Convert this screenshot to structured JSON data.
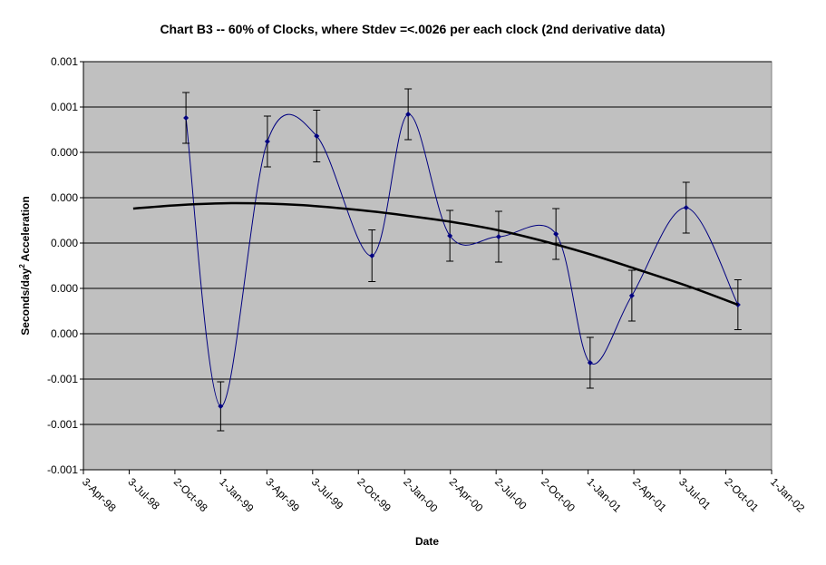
{
  "chart_data": {
    "type": "line",
    "title": "Chart B3 -- 60% of Clocks, where Stdev =<.0026 per each clock (2nd derivative data)",
    "xlabel": "Date",
    "ylabel": {
      "text": "Seconds/day",
      "superscript": "2",
      "rest": " Acceleration"
    },
    "xlim": [
      "1998-04-03",
      "2002-01-01"
    ],
    "xticks": [
      {
        "value": "1998-04-03",
        "label": "3-Apr-98"
      },
      {
        "value": "1998-07-03",
        "label": "3-Jul-98"
      },
      {
        "value": "1998-10-02",
        "label": "2-Oct-98"
      },
      {
        "value": "1999-01-01",
        "label": "1-Jan-99"
      },
      {
        "value": "1999-04-03",
        "label": "3-Apr-99"
      },
      {
        "value": "1999-07-03",
        "label": "3-Jul-99"
      },
      {
        "value": "1999-10-02",
        "label": "2-Oct-99"
      },
      {
        "value": "2000-01-02",
        "label": "2-Jan-00"
      },
      {
        "value": "2000-04-02",
        "label": "2-Apr-00"
      },
      {
        "value": "2000-07-02",
        "label": "2-Jul-00"
      },
      {
        "value": "2000-10-02",
        "label": "2-Oct-00"
      },
      {
        "value": "2001-01-01",
        "label": "1-Jan-01"
      },
      {
        "value": "2001-04-02",
        "label": "2-Apr-01"
      },
      {
        "value": "2001-07-03",
        "label": "3-Jul-01"
      },
      {
        "value": "2001-10-02",
        "label": "2-Oct-01"
      },
      {
        "value": "2002-01-01",
        "label": "1-Jan-02"
      }
    ],
    "ylim": [
      -0.001,
      0.0008
    ],
    "yticks": [
      {
        "value": -0.001,
        "label": "-0.001"
      },
      {
        "value": -0.0008,
        "label": "-0.001"
      },
      {
        "value": -0.0006,
        "label": "-0.001"
      },
      {
        "value": -0.0004,
        "label": "0.000"
      },
      {
        "value": -0.0002,
        "label": "0.000"
      },
      {
        "value": 0,
        "label": "0.000"
      },
      {
        "value": 0.0002,
        "label": "0.000"
      },
      {
        "value": 0.0004,
        "label": "0.000"
      },
      {
        "value": 0.0006,
        "label": "0.001"
      },
      {
        "value": 0.0008,
        "label": "0.001"
      }
    ],
    "grid": true,
    "plot_background": "#c0c0c0",
    "series": [
      {
        "color": "#000080",
        "x": [
          "1998-10-24",
          "1999-01-01",
          "1999-04-04",
          "1999-07-11",
          "1999-10-29",
          "2000-01-09",
          "2000-04-01",
          "2000-07-07",
          "2000-10-29",
          "2001-01-05",
          "2001-03-29",
          "2001-07-15",
          "2001-10-26"
        ],
        "values": [
          0.000552,
          -0.00072,
          0.000448,
          0.000472,
          -5.6e-05,
          0.000568,
          3.2e-05,
          2.8e-05,
          4e-05,
          -0.000528,
          -0.000232,
          0.000156,
          -0.000272
        ],
        "errors": [
          0.000112,
          0.000108,
          0.000112,
          0.000114,
          0.000114,
          0.000112,
          0.000112,
          0.000112,
          0.000112,
          0.000112,
          0.000112,
          0.000112,
          0.00011
        ]
      }
    ],
    "trendline": {
      "color": "#000000",
      "x": [
        "1998-07-11",
        "1998-10-15",
        "1999-01-31",
        "1999-06-06",
        "1999-10-11",
        "2000-01-09",
        "2000-04-08",
        "2000-07-07",
        "2000-10-05",
        "2001-01-03",
        "2001-04-03",
        "2001-07-21",
        "2001-10-26"
      ],
      "values": [
        0.000152,
        0.000168,
        0.000176,
        0.000168,
        0.000144,
        0.00012,
        9.2e-05,
        5.6e-05,
        8e-06,
        -4.8e-05,
        -0.000112,
        -0.000192,
        -0.000272
      ]
    }
  }
}
